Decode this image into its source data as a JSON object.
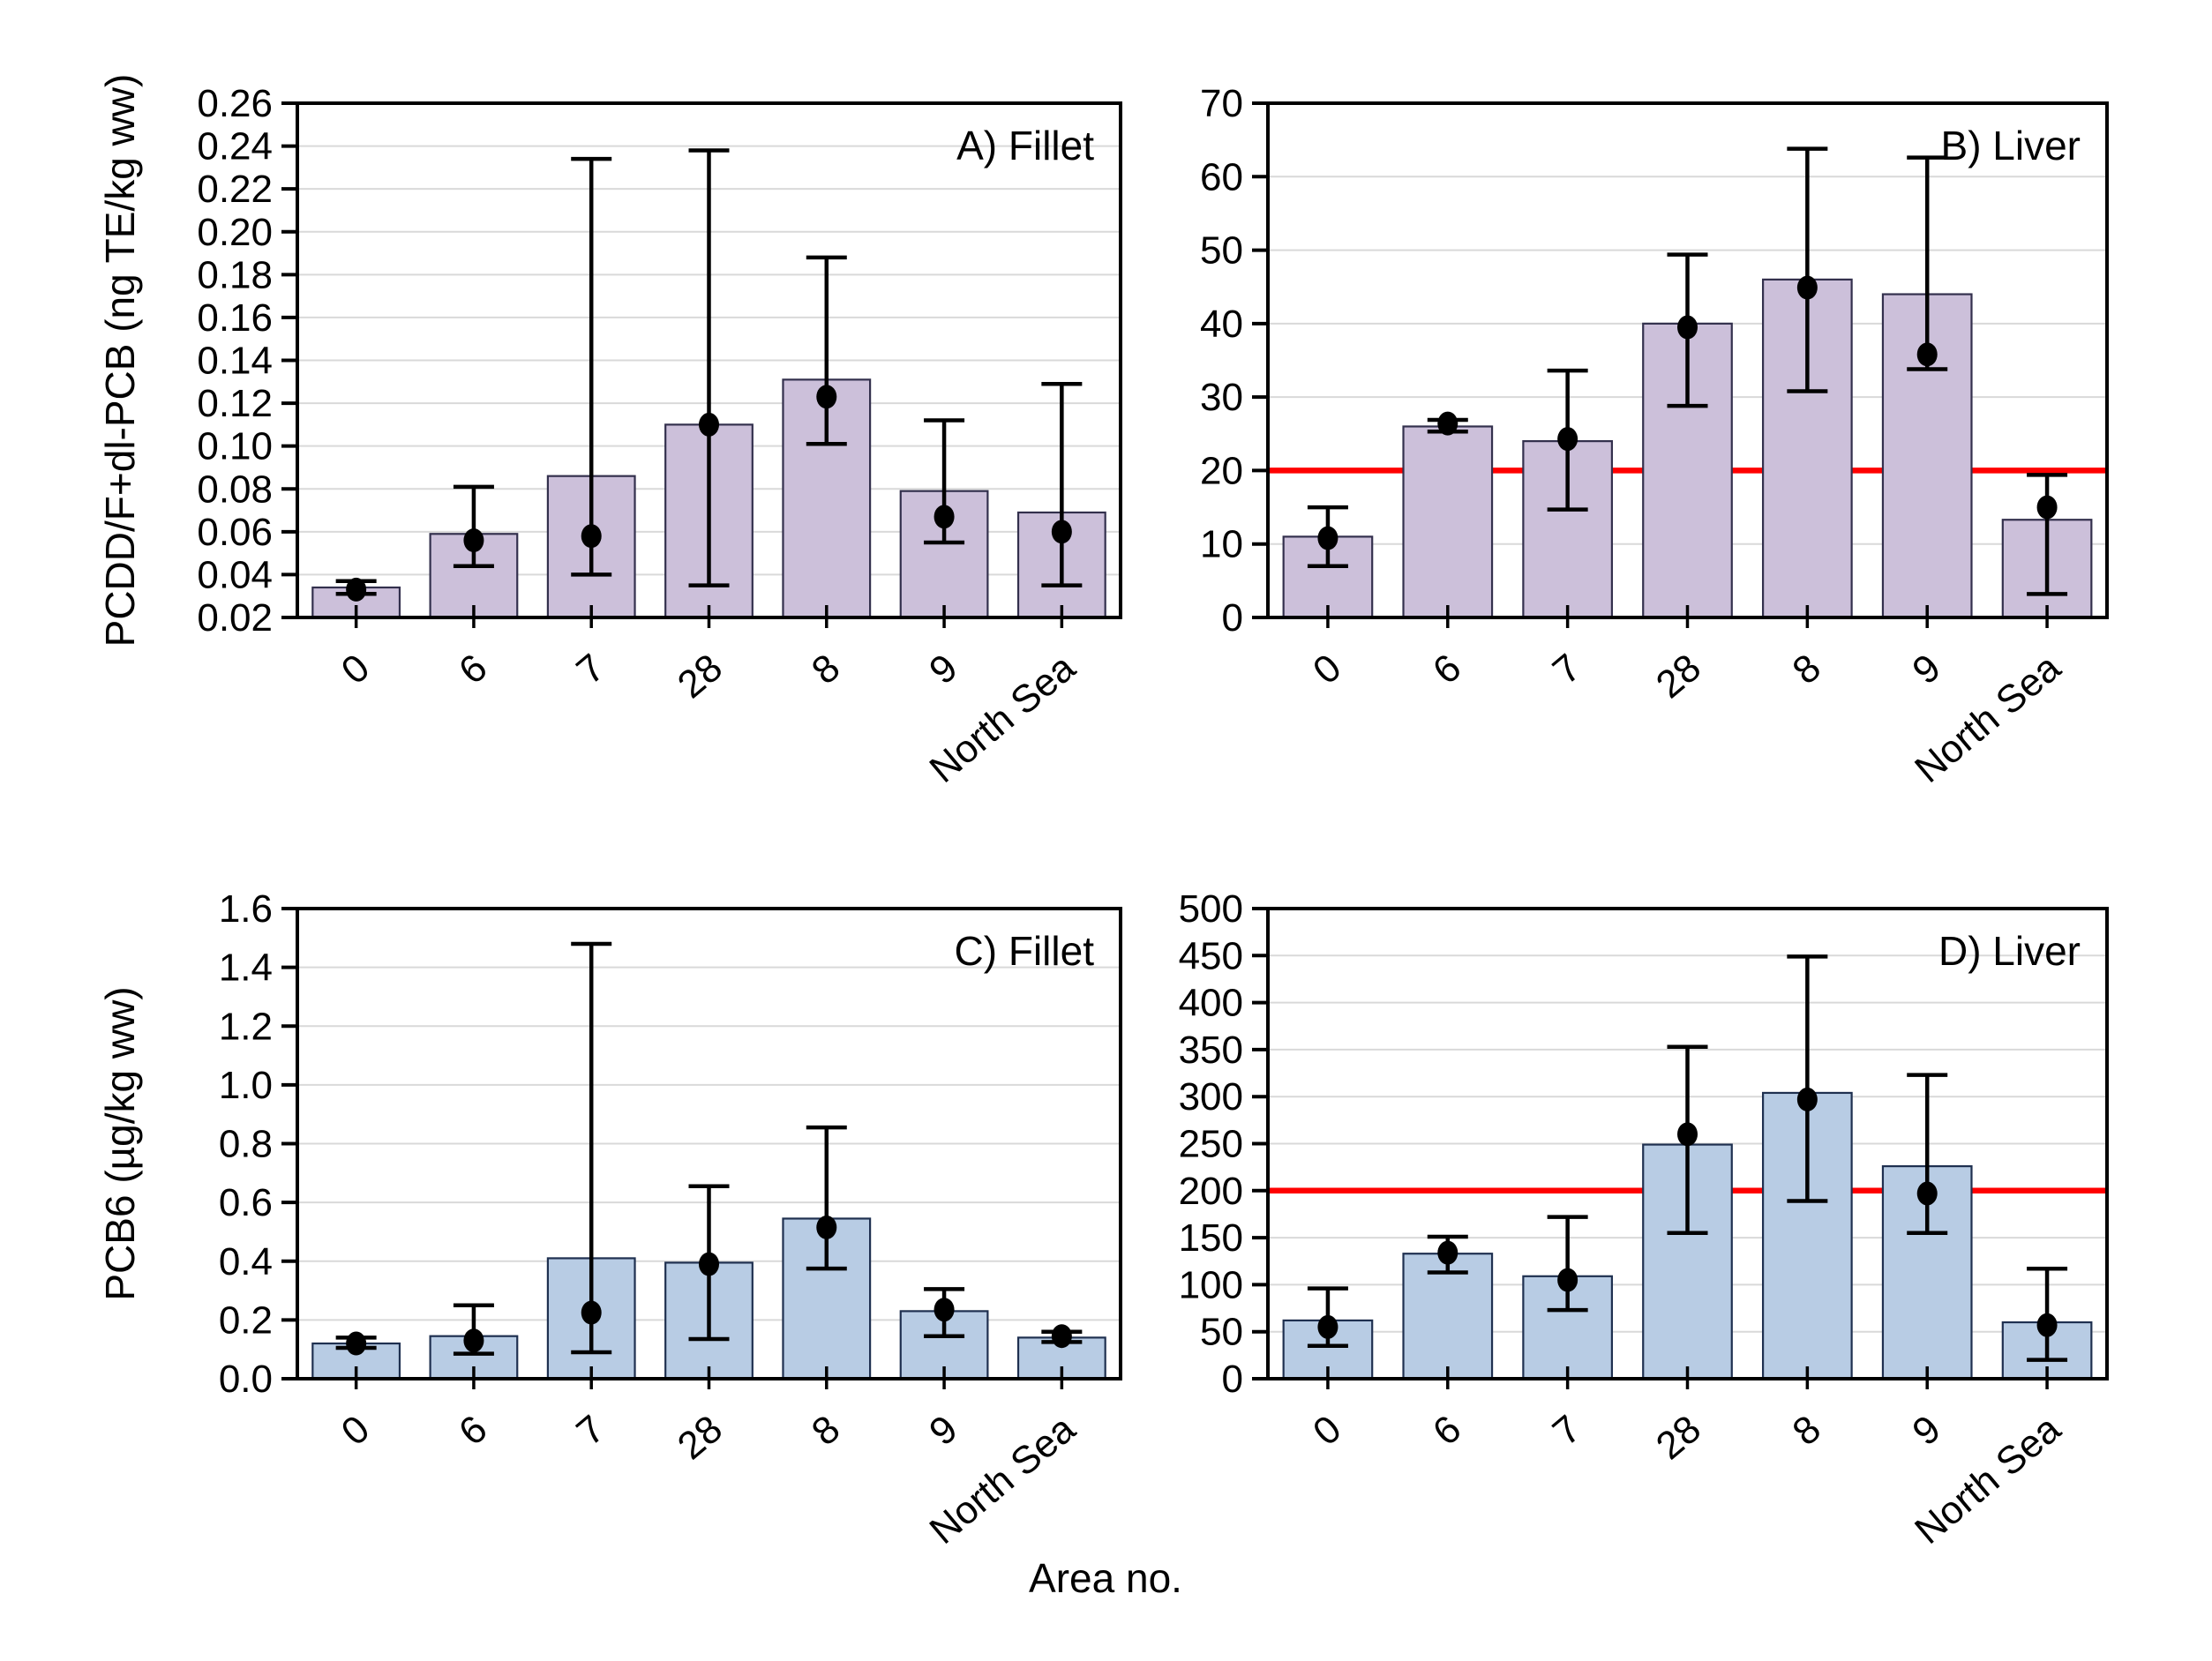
{
  "figure": {
    "xlabel": "Area no.",
    "background_color": "#ffffff",
    "grid_color": "#d9d9d9",
    "frame_color": "#000000",
    "error_bar_color": "#000000",
    "point_color": "#000000",
    "reference_line_color": "#ff0000"
  },
  "chart_data": [
    {
      "id": "A",
      "type": "bar",
      "title": "A) Fillet",
      "ylabel": "PCDD/F+dl-PCB (ng TE/kg ww)",
      "xlabel": "Area no.",
      "bar_color": "#ccc0da",
      "bar_border_color": "#33304d",
      "grid": true,
      "legend_position": "none",
      "ylim": [
        0.02,
        0.26
      ],
      "ytick_step": 0.02,
      "ytick_decimals": 2,
      "categories": [
        "0",
        "6",
        "7",
        "28",
        "8",
        "9",
        "North Sea"
      ],
      "series": [
        {
          "name": "mean (bar)",
          "values": [
            0.034,
            0.059,
            0.086,
            0.11,
            0.131,
            0.079,
            0.069
          ]
        },
        {
          "name": "median (dot)",
          "values": [
            0.033,
            0.056,
            0.058,
            0.11,
            0.123,
            0.067,
            0.06
          ]
        }
      ],
      "error_low": [
        0.031,
        0.044,
        0.04,
        0.035,
        0.101,
        0.055,
        0.035
      ],
      "error_high": [
        0.037,
        0.081,
        0.234,
        0.238,
        0.188,
        0.112,
        0.129
      ],
      "reference_line": null
    },
    {
      "id": "B",
      "type": "bar",
      "title": "B) Liver",
      "ylabel": "",
      "xlabel": "Area no.",
      "bar_color": "#ccc0da",
      "bar_border_color": "#33304d",
      "grid": true,
      "legend_position": "none",
      "ylim": [
        0,
        70
      ],
      "ytick_step": 10,
      "ytick_decimals": 0,
      "categories": [
        "0",
        "6",
        "7",
        "28",
        "8",
        "9",
        "North Sea"
      ],
      "series": [
        {
          "name": "mean (bar)",
          "values": [
            11,
            26,
            24,
            40,
            46,
            44,
            13.3
          ]
        },
        {
          "name": "median (dot)",
          "values": [
            10.8,
            26.4,
            24.3,
            39.5,
            44.9,
            35.8,
            15.0
          ]
        }
      ],
      "error_low": [
        7.0,
        25.3,
        14.7,
        28.8,
        30.8,
        33.8,
        3.2
      ],
      "error_high": [
        15.0,
        26.9,
        33.6,
        49.4,
        63.8,
        62.6,
        19.4
      ],
      "reference_line": 20
    },
    {
      "id": "C",
      "type": "bar",
      "title": "C) Fillet",
      "ylabel": "PCB6 (µg/kg ww)",
      "xlabel": "Area no.",
      "bar_color": "#b8cce4",
      "bar_border_color": "#1f3050",
      "grid": true,
      "legend_position": "none",
      "ylim": [
        0,
        1.6
      ],
      "ytick_step": 0.2,
      "ytick_decimals": 1,
      "categories": [
        "0",
        "6",
        "7",
        "28",
        "8",
        "9",
        "North Sea"
      ],
      "series": [
        {
          "name": "mean (bar)",
          "values": [
            0.12,
            0.145,
            0.41,
            0.395,
            0.545,
            0.23,
            0.14
          ]
        },
        {
          "name": "median (dot)",
          "values": [
            0.12,
            0.13,
            0.225,
            0.39,
            0.515,
            0.235,
            0.145
          ]
        }
      ],
      "error_low": [
        0.105,
        0.085,
        0.09,
        0.135,
        0.375,
        0.145,
        0.125
      ],
      "error_high": [
        0.14,
        0.25,
        1.48,
        0.655,
        0.855,
        0.305,
        0.16
      ],
      "reference_line": null
    },
    {
      "id": "D",
      "type": "bar",
      "title": "D) Liver",
      "ylabel": "",
      "xlabel": "Area no.",
      "bar_color": "#b8cce4",
      "bar_border_color": "#1f3050",
      "grid": true,
      "legend_position": "none",
      "ylim": [
        0,
        500
      ],
      "ytick_step": 50,
      "ytick_decimals": 0,
      "categories": [
        "0",
        "6",
        "7",
        "28",
        "8",
        "9",
        "North Sea"
      ],
      "series": [
        {
          "name": "mean (bar)",
          "values": [
            62,
            133,
            109,
            249,
            304,
            226,
            60
          ]
        },
        {
          "name": "median (dot)",
          "values": [
            55,
            134,
            105,
            260,
            297,
            197,
            57
          ]
        }
      ],
      "error_low": [
        35,
        113,
        73,
        155,
        189,
        155,
        20
      ],
      "error_high": [
        96,
        151,
        172,
        353,
        449,
        323,
        117
      ],
      "reference_line": 200
    }
  ]
}
